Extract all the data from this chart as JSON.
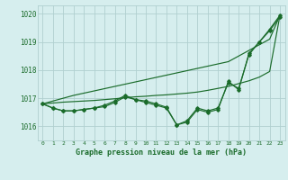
{
  "title": "Graphe pression niveau de la mer (hPa)",
  "xlabel_ticks": [
    0,
    1,
    2,
    3,
    4,
    5,
    6,
    7,
    8,
    9,
    10,
    11,
    12,
    13,
    14,
    15,
    16,
    17,
    18,
    19,
    20,
    21,
    22,
    23
  ],
  "ylim": [
    1015.5,
    1020.3
  ],
  "yticks": [
    1016,
    1017,
    1018,
    1019,
    1020
  ],
  "bg_color": "#d6eeee",
  "grid_color": "#b0d0d0",
  "line_color": "#1a6b2a",
  "line1": [
    1016.8,
    1016.65,
    1016.55,
    1016.55,
    1016.6,
    1016.65,
    1016.7,
    1016.85,
    1017.05,
    1016.95,
    1016.85,
    1016.75,
    1016.65,
    1016.05,
    1016.2,
    1016.65,
    1016.55,
    1016.65,
    1017.55,
    1017.35,
    1018.55,
    1019.0,
    1019.4,
    1019.9
  ],
  "line2": [
    1016.8,
    1016.65,
    1016.55,
    1016.55,
    1016.6,
    1016.65,
    1016.75,
    1016.9,
    1017.1,
    1016.95,
    1016.9,
    1016.8,
    1016.68,
    1016.05,
    1016.15,
    1016.6,
    1016.5,
    1016.6,
    1017.6,
    1017.3,
    1018.6,
    1019.0,
    1019.45,
    1019.95
  ],
  "line3_upper": [
    1016.8,
    1016.9,
    1017.0,
    1017.1,
    1017.18,
    1017.26,
    1017.34,
    1017.42,
    1017.5,
    1017.58,
    1017.66,
    1017.74,
    1017.82,
    1017.9,
    1017.98,
    1018.06,
    1018.14,
    1018.22,
    1018.3,
    1018.5,
    1018.7,
    1018.9,
    1019.1,
    1019.95
  ],
  "line4_lower": [
    1016.8,
    1016.83,
    1016.86,
    1016.88,
    1016.9,
    1016.92,
    1016.95,
    1016.98,
    1017.02,
    1017.05,
    1017.07,
    1017.1,
    1017.12,
    1017.15,
    1017.18,
    1017.22,
    1017.28,
    1017.35,
    1017.42,
    1017.52,
    1017.62,
    1017.75,
    1017.95,
    1019.95
  ]
}
